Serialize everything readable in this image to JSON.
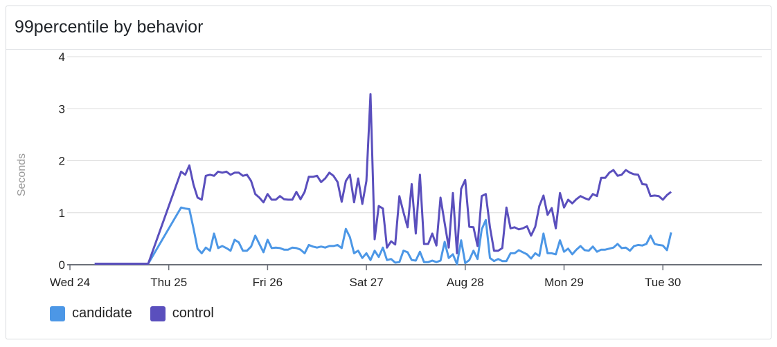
{
  "panel": {
    "title": "99percentile by behavior"
  },
  "chart_data": {
    "type": "line",
    "title": "99percentile by behavior",
    "ylabel": "Seconds",
    "xlabel": "",
    "ylim": [
      0,
      4
    ],
    "yticks": [
      "0",
      "1",
      "2",
      "3",
      "4"
    ],
    "xticks": [
      "Wed 24",
      "Thu 25",
      "Fri 26",
      "Sat 27",
      "Aug 28",
      "Mon 29",
      "Tue 30"
    ],
    "grid": true,
    "legend": "bottom-left",
    "x_start": "Aug 24 06:00",
    "x_step_hours": 1,
    "series": [
      {
        "name": "candidate",
        "color": "#4c97e6",
        "values": [
          0.02,
          0.02,
          0.02,
          0.02,
          0.02,
          0.02,
          0.02,
          0.02,
          0.02,
          0.02,
          0.02,
          0.02,
          0.02,
          0.02,
          null,
          null,
          null,
          null,
          null,
          null,
          null,
          1.1,
          1.08,
          1.07,
          0.7,
          0.31,
          0.22,
          0.33,
          0.27,
          0.6,
          0.32,
          0.36,
          0.32,
          0.27,
          0.48,
          0.43,
          0.27,
          0.27,
          0.35,
          0.56,
          0.4,
          0.24,
          0.48,
          0.32,
          0.33,
          0.32,
          0.29,
          0.29,
          0.33,
          0.32,
          0.29,
          0.22,
          0.38,
          0.35,
          0.33,
          0.35,
          0.33,
          0.36,
          0.36,
          0.38,
          0.32,
          0.69,
          0.53,
          0.22,
          0.27,
          0.13,
          0.22,
          0.09,
          0.27,
          0.15,
          0.33,
          0.09,
          0.11,
          0.04,
          0.05,
          0.27,
          0.24,
          0.09,
          0.08,
          0.25,
          0.05,
          0.05,
          0.08,
          0.05,
          0.08,
          0.44,
          0.13,
          0.2,
          0.01,
          0.47,
          0.03,
          0.09,
          0.27,
          0.11,
          0.68,
          0.86,
          0.13,
          0.07,
          0.11,
          0.07,
          0.07,
          0.22,
          0.22,
          0.28,
          0.24,
          0.2,
          0.12,
          0.22,
          0.17,
          0.6,
          0.22,
          0.22,
          0.2,
          0.47,
          0.25,
          0.31,
          0.2,
          0.29,
          0.36,
          0.28,
          0.27,
          0.35,
          0.25,
          0.29,
          0.29,
          0.31,
          0.33,
          0.4,
          0.32,
          0.33,
          0.27,
          0.36,
          0.38,
          0.37,
          0.4,
          0.56,
          0.4,
          0.38,
          0.37,
          0.28,
          0.62
        ]
      },
      {
        "name": "control",
        "color": "#5a4fbd",
        "values": [
          0.02,
          0.02,
          0.02,
          0.02,
          0.02,
          0.02,
          0.02,
          0.02,
          0.02,
          0.02,
          0.02,
          0.02,
          0.02,
          0.02,
          null,
          null,
          null,
          null,
          null,
          null,
          null,
          1.79,
          1.73,
          1.91,
          1.54,
          1.29,
          1.25,
          1.71,
          1.73,
          1.71,
          1.79,
          1.77,
          1.79,
          1.73,
          1.77,
          1.77,
          1.71,
          1.73,
          1.61,
          1.36,
          1.29,
          1.2,
          1.36,
          1.25,
          1.25,
          1.32,
          1.26,
          1.25,
          1.25,
          1.4,
          1.26,
          1.4,
          1.69,
          1.69,
          1.71,
          1.59,
          1.66,
          1.77,
          1.71,
          1.59,
          1.21,
          1.61,
          1.73,
          1.2,
          1.66,
          1.17,
          1.61,
          3.28,
          0.49,
          1.13,
          1.08,
          0.33,
          0.45,
          0.39,
          1.32,
          1.01,
          0.72,
          1.55,
          0.6,
          1.73,
          0.4,
          0.4,
          0.6,
          0.37,
          1.29,
          0.8,
          0.33,
          1.38,
          0.22,
          1.46,
          1.63,
          0.73,
          0.72,
          0.36,
          1.32,
          1.36,
          0.72,
          0.27,
          0.27,
          0.32,
          1.1,
          0.7,
          0.72,
          0.68,
          0.7,
          0.74,
          0.56,
          0.73,
          1.13,
          1.33,
          0.96,
          1.09,
          0.7,
          1.38,
          1.1,
          1.25,
          1.18,
          1.26,
          1.32,
          1.28,
          1.25,
          1.36,
          1.32,
          1.67,
          1.67,
          1.77,
          1.82,
          1.71,
          1.73,
          1.82,
          1.77,
          1.74,
          1.73,
          1.55,
          1.54,
          1.32,
          1.33,
          1.32,
          1.25,
          1.34,
          1.4
        ]
      }
    ]
  }
}
